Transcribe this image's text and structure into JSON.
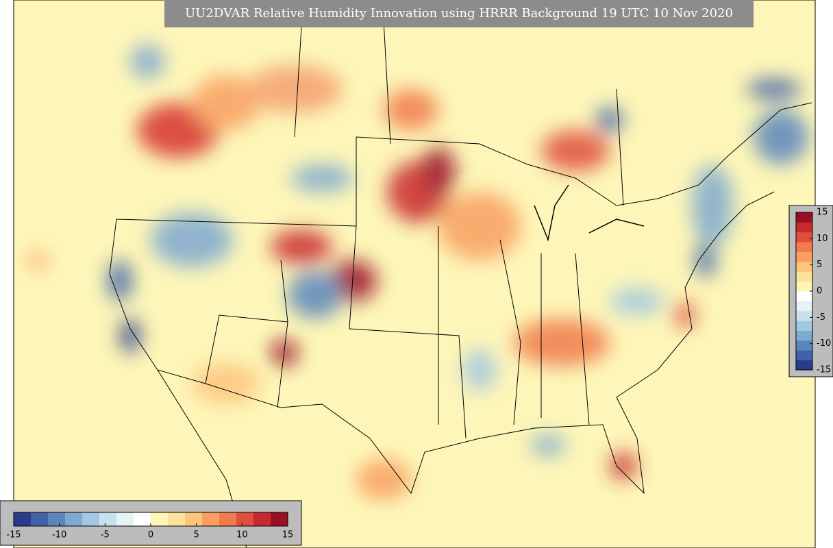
{
  "title": "UU2DVAR Relative Humidity Innovation using HRRR Background 19 UTC 10 Nov 2020",
  "colorbar_horizontal": {
    "range": [
      -15,
      15
    ],
    "ticks": [
      -15,
      -10,
      -5,
      0,
      5,
      10,
      15
    ]
  },
  "colorbar_vertical": {
    "range": [
      -15,
      15
    ],
    "ticks": [
      -15,
      -10,
      -5,
      0,
      5,
      10,
      15
    ]
  },
  "colors": [
    "#2c3a8a",
    "#3f62a8",
    "#5a86bd",
    "#7ea9d1",
    "#a3c8e2",
    "#c7e2ef",
    "#e6f3f4",
    "#ffffff",
    "#fdf6b5",
    "#fde39a",
    "#fdc47e",
    "#f99f62",
    "#f17b4e",
    "#de4f3c",
    "#c8292f",
    "#9a0f25"
  ]
}
